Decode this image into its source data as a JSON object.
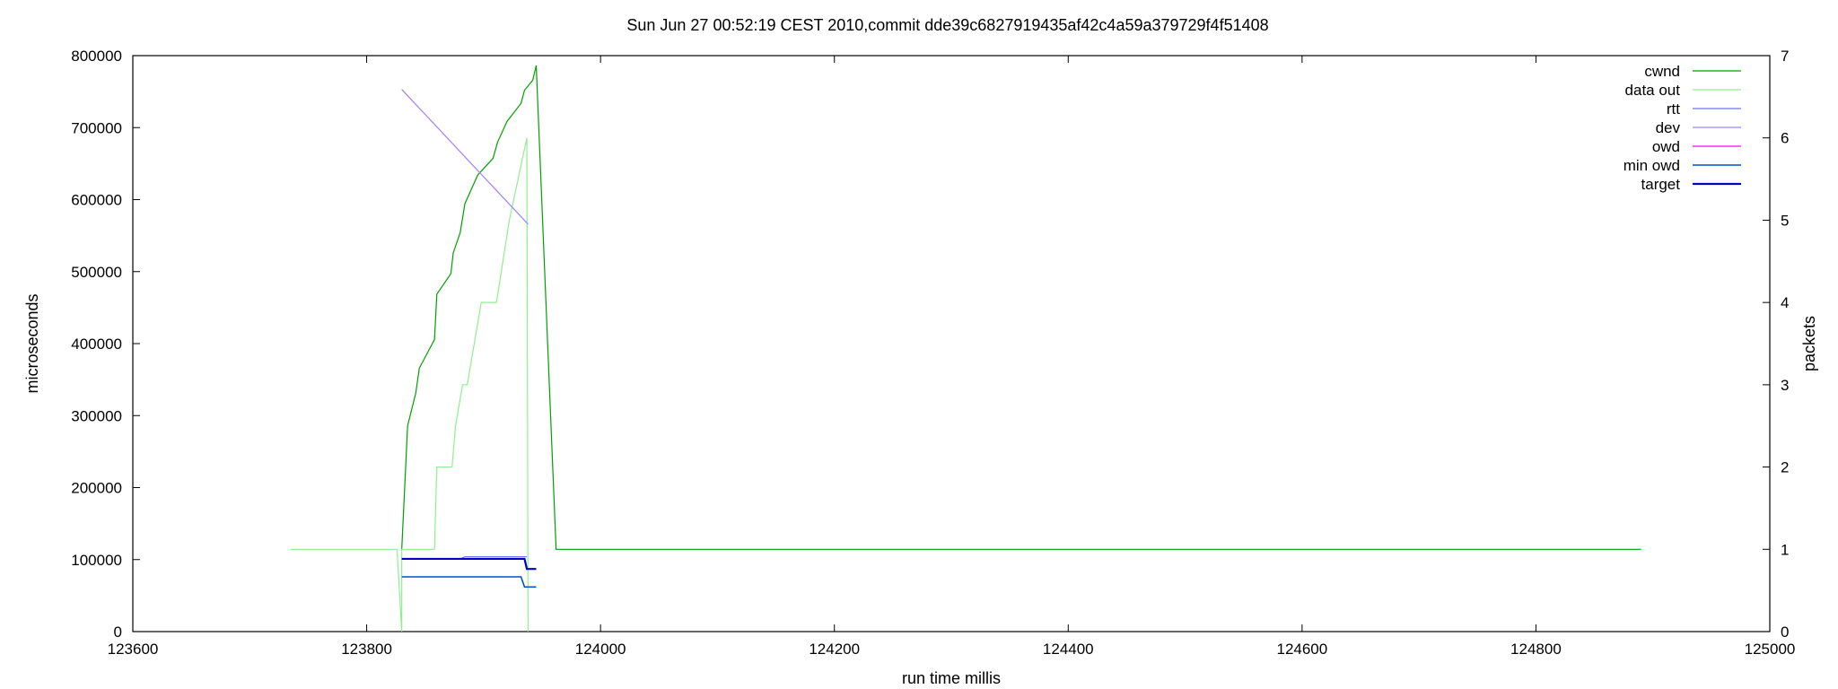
{
  "chart_data": {
    "type": "line",
    "title": "Sun Jun 27 00:52:19 CEST 2010,commit dde39c6827919435af42c4a59a379729f4f51408",
    "xlabel": "run time millis",
    "ylabel": "microseconds",
    "y2label": "packets",
    "xlim": [
      123600,
      125000
    ],
    "ylim": [
      0,
      800000
    ],
    "y2lim": [
      0,
      7
    ],
    "xticks": [
      "123600",
      "123800",
      "124000",
      "124200",
      "124400",
      "124600",
      "124800",
      "125000"
    ],
    "yticks": [
      "0",
      "100000",
      "200000",
      "300000",
      "400000",
      "500000",
      "600000",
      "700000",
      "800000"
    ],
    "y2ticks": [
      "0",
      "1",
      "2",
      "3",
      "4",
      "5",
      "6",
      "7"
    ],
    "legend_position": "top-right",
    "grid": false,
    "series": [
      {
        "name": "cwnd",
        "axis": "y2",
        "color": "#00a000",
        "width": 1.2,
        "points": [
          [
            123830,
            1.0
          ],
          [
            123835,
            2.5
          ],
          [
            123842,
            2.9
          ],
          [
            123845,
            3.2
          ],
          [
            123858,
            3.55
          ],
          [
            123860,
            4.1
          ],
          [
            123872,
            4.35
          ],
          [
            123874,
            4.6
          ],
          [
            123880,
            4.85
          ],
          [
            123884,
            5.2
          ],
          [
            123895,
            5.55
          ],
          [
            123908,
            5.75
          ],
          [
            123912,
            5.95
          ],
          [
            123920,
            6.2
          ],
          [
            123932,
            6.42
          ],
          [
            123935,
            6.58
          ],
          [
            123942,
            6.7
          ],
          [
            123945,
            6.88
          ],
          [
            123962,
            1.0
          ],
          [
            124890,
            1.0
          ]
        ]
      },
      {
        "name": "data out",
        "axis": "y2",
        "color": "#90ee90",
        "width": 1.2,
        "points": [
          [
            123735,
            1.0
          ],
          [
            123826,
            1.0
          ],
          [
            123830,
            0.0
          ],
          [
            123830,
            1.0
          ],
          [
            123858,
            1.0
          ],
          [
            123860,
            2.0
          ],
          [
            123873,
            2.0
          ],
          [
            123876,
            2.5
          ],
          [
            123882,
            3.0
          ],
          [
            123886,
            3.0
          ],
          [
            123898,
            4.0
          ],
          [
            123911,
            4.0
          ],
          [
            123922,
            5.0
          ],
          [
            123937,
            6.0
          ],
          [
            123938,
            0.0
          ]
        ]
      },
      {
        "name": "rtt",
        "axis": "y1",
        "color": "#7070ff",
        "width": 1.2,
        "points": [
          [
            123830,
            101000
          ],
          [
            123880,
            101000
          ],
          [
            123884,
            104000
          ],
          [
            123937,
            104000
          ]
        ]
      },
      {
        "name": "dev",
        "axis": "y1",
        "color": "#a080ff",
        "width": 1.2,
        "points": [
          [
            123830,
            753000
          ],
          [
            123938,
            566000
          ]
        ]
      },
      {
        "name": "owd",
        "axis": "y1",
        "color": "#ff00ff",
        "width": 1.2,
        "points": []
      },
      {
        "name": "min owd",
        "axis": "y1",
        "color": "#0050c8",
        "width": 1.6,
        "points": [
          [
            123830,
            76000
          ],
          [
            123932,
            76000
          ],
          [
            123935,
            62000
          ],
          [
            123945,
            62000
          ]
        ]
      },
      {
        "name": "target",
        "axis": "y1",
        "color": "#0000c0",
        "width": 2.2,
        "points": [
          [
            123830,
            101000
          ],
          [
            123935,
            101000
          ],
          [
            123937,
            87000
          ],
          [
            123945,
            87000
          ]
        ]
      }
    ]
  }
}
